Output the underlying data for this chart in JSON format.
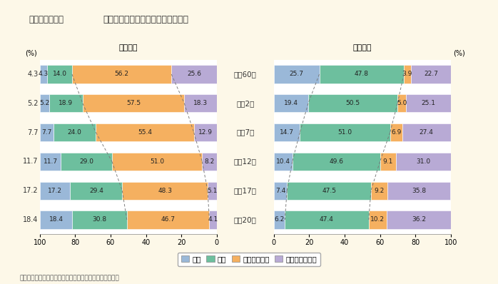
{
  "title_left": "第１－２－６図",
  "title_right": "学歴別一般労働者の構成割合の推移",
  "years": [
    "昭和60年",
    "平成2年",
    "平成7年",
    "平成12年",
    "平成17年",
    "平成20年"
  ],
  "female_data": {
    "大学大学院": [
      25.6,
      18.3,
      12.9,
      8.2,
      5.1,
      4.1
    ],
    "高専短大": [
      56.2,
      57.5,
      55.4,
      51.0,
      48.3,
      46.7
    ],
    "高卒": [
      14.0,
      18.9,
      24.0,
      29.0,
      29.4,
      30.8
    ],
    "中卒": [
      4.3,
      5.2,
      7.7,
      11.7,
      17.2,
      18.4
    ]
  },
  "male_data": {
    "中卒": [
      25.7,
      19.4,
      14.7,
      10.4,
      7.4,
      6.2
    ],
    "高卒": [
      47.8,
      50.5,
      51.0,
      49.6,
      47.5,
      47.4
    ],
    "高専短大": [
      3.9,
      5.0,
      6.9,
      9.1,
      9.2,
      10.2
    ],
    "大学大学院": [
      22.7,
      25.1,
      27.4,
      31.0,
      35.8,
      36.2
    ]
  },
  "colors": {
    "中卒": "#9ab8d8",
    "高卒": "#6dbf9e",
    "高専短大": "#f5b060",
    "大学大学院": "#b8aad5"
  },
  "bg_color": "#fdf8e8",
  "title_bg_left": "#e8c8c0",
  "title_bg_right": "#f0eaf8",
  "note": "（備考）厚生労働省「賃金構造基本統計調査」より作成。",
  "female_label": "〈女性〉",
  "male_label": "〈男性〉",
  "legend_labels": [
    "中卒",
    "高卒",
    "高専・短大卒",
    "大学・大学院卒"
  ],
  "female_chugaku": [
    4.3,
    5.2,
    7.7,
    11.7,
    17.2,
    18.4
  ]
}
